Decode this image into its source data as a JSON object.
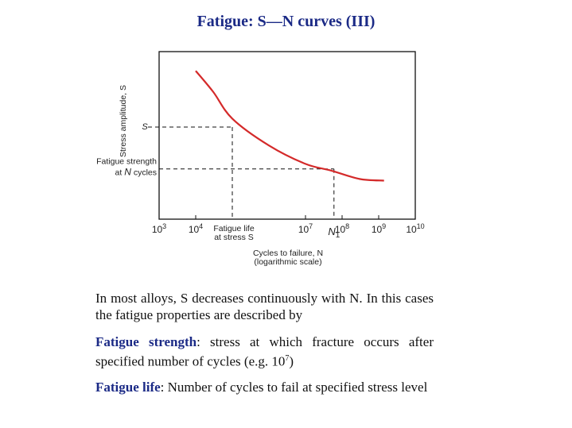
{
  "title": "Fatigue: S—N curves (III)",
  "chart_data": {
    "type": "line",
    "ylabel": "Stress amplitude, S",
    "xlabel": "Cycles to failure, N",
    "xlabel_sub": "(logarithmic scale)",
    "x_scale": "log",
    "xlim": [
      1000,
      10000000000
    ],
    "ylim": [
      0,
      1
    ],
    "x_tick_labels": [
      {
        "base": "10",
        "exp": "3",
        "value": 1000
      },
      {
        "base": "10",
        "exp": "4",
        "value": 10000
      },
      {
        "base": "10",
        "exp": "7",
        "value": 10000000
      },
      {
        "base": "10",
        "exp": "8",
        "value": 100000000
      },
      {
        "base": "10",
        "exp": "9",
        "value": 1000000000
      },
      {
        "base": "10",
        "exp": "10",
        "value": 10000000000
      }
    ],
    "series": [
      {
        "color": "#d42a2a",
        "points": [
          {
            "x": 10000,
            "y": 0.885
          },
          {
            "x": 30000,
            "y": 0.76
          },
          {
            "x": 100000,
            "y": 0.6
          },
          {
            "x": 1000000,
            "y": 0.44
          },
          {
            "x": 10000000,
            "y": 0.33
          },
          {
            "x": 50000000,
            "y": 0.29
          },
          {
            "x": 300000000,
            "y": 0.24
          },
          {
            "x": 1400000000,
            "y": 0.23
          }
        ]
      }
    ],
    "annotations": {
      "s_label": "S",
      "s_level": 0.55,
      "s_x": 100000,
      "fatigue_strength_label_line1": "Fatigue strength",
      "fatigue_strength_label_line2_prefix": "at ",
      "fatigue_strength_label_N": "N",
      "fatigue_strength_label_line2_suffix": " cycles",
      "fatigue_strength_level": 0.3,
      "n1_label": "N",
      "n1_sub": "1",
      "n1_x": 60000000,
      "fatigue_life_line1": "Fatigue life",
      "fatigue_life_line2": "at stress S"
    }
  },
  "text": {
    "p1": "In most alloys, S decreases continuously with N. In this cases the fatigue properties are described by",
    "p2_term": "Fatigue strength",
    "p2_body": ": stress at which fracture occurs after specified number of cycles (e.g. 10",
    "p2_exp": "7",
    "p2_end": ")",
    "p3_term": "Fatigue life",
    "p3_body": ": Number of cycles to fail at specified stress level"
  }
}
